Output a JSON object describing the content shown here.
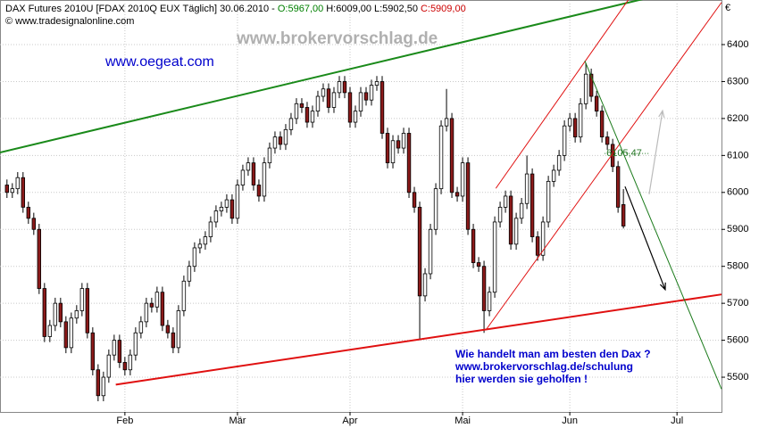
{
  "chart_data": {
    "type": "candlestick",
    "title": "DAX Futures 2010U [FDAX 2010Q EUX  Täglich] 30.06.2010 -",
    "ohlc_labels": [
      "O:5967,00",
      "H:6009,00",
      "L:5902,50",
      "C:5909,00"
    ],
    "ohlc_colors": [
      "#008000",
      "#000000",
      "#000000",
      "#cc0000"
    ],
    "copyright": "© www.tradesignalonline.com",
    "watermark": "www.brokervorschlag.de",
    "site": "www.oegeat.com",
    "annotation": [
      "Wie handelt man am besten den Dax ?",
      "www.brokervorschlag.de/schulung",
      "hier werden sie geholfen !"
    ],
    "currency": "€",
    "up_color": "#ffffff",
    "down_color": "#8b1a1a",
    "xlim": [
      -1.3,
      133.3
    ],
    "xticks": [
      {
        "value": 22,
        "label": "Feb"
      },
      {
        "value": 43,
        "label": "Mär"
      },
      {
        "value": 64,
        "label": "Apr"
      },
      {
        "value": 85,
        "label": "Mai"
      },
      {
        "value": 105,
        "label": "Jun"
      },
      {
        "value": 125,
        "label": "Jul"
      }
    ],
    "ylim": [
      5406,
      6511
    ],
    "yticks": [
      5500,
      5600,
      5700,
      5800,
      5900,
      6000,
      6100,
      6200,
      6300,
      6400
    ],
    "grid": true,
    "open": [
      6020,
      6000,
      6010,
      6040,
      5960,
      5930,
      5900,
      5740,
      5610,
      5640,
      5700,
      5650,
      5580,
      5660,
      5680,
      5740,
      5620,
      5520,
      5450,
      5500,
      5560,
      5600,
      5540,
      5520,
      5560,
      5620,
      5650,
      5700,
      5690,
      5730,
      5640,
      5620,
      5580,
      5680,
      5760,
      5800,
      5850,
      5860,
      5880,
      5920,
      5950,
      5960,
      5980,
      5930,
      6020,
      6060,
      6080,
      6020,
      5990,
      6080,
      6120,
      6150,
      6130,
      6170,
      6200,
      6240,
      6230,
      6190,
      6220,
      6260,
      6280,
      6230,
      6270,
      6300,
      6270,
      6190,
      6220,
      6270,
      6250,
      6290,
      6300,
      6160,
      6080,
      6140,
      6120,
      6160,
      6000,
      5960,
      5720,
      5780,
      5900,
      6010,
      6180,
      6200,
      6000,
      5990,
      6080,
      5900,
      5810,
      5800,
      5680,
      5730,
      5920,
      5960,
      5990,
      5860,
      5930,
      5970,
      6050,
      5880,
      5830,
      5920,
      6030,
      6060,
      6100,
      6180,
      6200,
      6150,
      6240,
      6320,
      6260,
      6220,
      6150,
      6130,
      6070,
      5967
    ],
    "high": [
      6035,
      6025,
      6055,
      6055,
      5975,
      5945,
      5915,
      5755,
      5655,
      5715,
      5715,
      5665,
      5675,
      5695,
      5755,
      5755,
      5635,
      5535,
      5515,
      5575,
      5615,
      5615,
      5555,
      5575,
      5635,
      5665,
      5715,
      5715,
      5745,
      5745,
      5655,
      5635,
      5695,
      5775,
      5815,
      5865,
      5875,
      5895,
      5935,
      5965,
      5975,
      5995,
      5995,
      6035,
      6075,
      6095,
      6095,
      6035,
      6095,
      6135,
      6165,
      6165,
      6185,
      6215,
      6255,
      6255,
      6245,
      6235,
      6275,
      6295,
      6295,
      6285,
      6315,
      6315,
      6285,
      6235,
      6285,
      6285,
      6305,
      6315,
      6315,
      6175,
      6155,
      6155,
      6175,
      6175,
      6015,
      5975,
      5795,
      5915,
      6025,
      6195,
      6280,
      6215,
      6015,
      6095,
      6095,
      5915,
      5825,
      5815,
      5745,
      5935,
      5975,
      6005,
      6005,
      5945,
      5985,
      6100,
      6065,
      5895,
      5935,
      6045,
      6075,
      6115,
      6195,
      6215,
      6215,
      6255,
      6350,
      6335,
      6275,
      6235,
      6165,
      6145,
      6085,
      6009
    ],
    "low": [
      5985,
      5985,
      5995,
      5945,
      5915,
      5885,
      5725,
      5595,
      5595,
      5625,
      5635,
      5565,
      5565,
      5645,
      5665,
      5605,
      5505,
      5435,
      5435,
      5485,
      5545,
      5525,
      5505,
      5505,
      5545,
      5605,
      5635,
      5675,
      5675,
      5625,
      5605,
      5565,
      5565,
      5665,
      5745,
      5785,
      5835,
      5845,
      5865,
      5905,
      5935,
      5945,
      5915,
      5915,
      6005,
      6045,
      6005,
      5975,
      5975,
      6065,
      6105,
      6115,
      6115,
      6155,
      6185,
      6215,
      6175,
      6175,
      6205,
      6245,
      6215,
      6215,
      6255,
      6255,
      6175,
      6175,
      6205,
      6235,
      6235,
      6275,
      6145,
      6065,
      6065,
      6105,
      6105,
      5985,
      5945,
      5600,
      5705,
      5765,
      5885,
      5995,
      6165,
      5985,
      5975,
      5975,
      5885,
      5795,
      5785,
      5620,
      5665,
      5715,
      5905,
      5945,
      5845,
      5845,
      5915,
      5955,
      5865,
      5815,
      5815,
      5905,
      6015,
      6045,
      6085,
      6165,
      6135,
      6135,
      6225,
      6245,
      6205,
      6135,
      6115,
      6055,
      5945,
      5902.5
    ],
    "close": [
      6000,
      6010,
      6040,
      5960,
      5930,
      5900,
      5740,
      5610,
      5640,
      5700,
      5650,
      5580,
      5660,
      5680,
      5740,
      5620,
      5520,
      5450,
      5500,
      5560,
      5600,
      5540,
      5520,
      5560,
      5620,
      5650,
      5700,
      5690,
      5730,
      5640,
      5620,
      5580,
      5680,
      5760,
      5800,
      5850,
      5860,
      5880,
      5920,
      5950,
      5960,
      5980,
      5930,
      6020,
      6060,
      6080,
      6020,
      5990,
      6080,
      6120,
      6150,
      6130,
      6170,
      6200,
      6240,
      6230,
      6190,
      6220,
      6260,
      6280,
      6230,
      6270,
      6300,
      6270,
      6190,
      6220,
      6270,
      6250,
      6290,
      6300,
      6160,
      6080,
      6140,
      6120,
      6160,
      6000,
      5960,
      5720,
      5780,
      5900,
      6010,
      6180,
      6200,
      6000,
      5990,
      6080,
      5900,
      5810,
      5800,
      5680,
      5730,
      5920,
      5960,
      5990,
      5860,
      5930,
      5970,
      6050,
      5880,
      5830,
      5920,
      6030,
      6060,
      6100,
      6180,
      6200,
      6150,
      6240,
      6320,
      6260,
      6220,
      6150,
      6130,
      6070,
      5960,
      5909
    ],
    "lines": [
      {
        "color": "#1a8a1a",
        "width": 2,
        "points": [
          [
            -1.3,
            6108
          ],
          [
            119.5,
            6526
          ]
        ]
      },
      {
        "color": "#e01010",
        "width": 2,
        "points": [
          [
            20.3,
            5480
          ],
          [
            133.3,
            5724
          ]
        ]
      },
      {
        "color": "#e01010",
        "width": 1,
        "points": [
          [
            89.5,
            5631
          ],
          [
            133.3,
            6514
          ]
        ]
      },
      {
        "color": "#e01010",
        "width": 1,
        "points": [
          [
            91.2,
            6011
          ],
          [
            116.2,
            6527
          ]
        ]
      },
      {
        "color": "#1a7a1a",
        "width": 1,
        "points": [
          [
            107.8,
            6356
          ],
          [
            133.3,
            5468
          ]
        ]
      }
    ],
    "arrows": [
      {
        "color": "#000000",
        "points": [
          [
            115.3,
            6016
          ],
          [
            122.8,
            5737
          ]
        ]
      },
      {
        "color": "#bbbbbb",
        "points": [
          [
            119.8,
            5995
          ],
          [
            122.3,
            6221
          ]
        ]
      }
    ],
    "level": {
      "value": 6105.47,
      "label": "6105,47",
      "color": "#2a7a2a",
      "from": 111.5
    }
  }
}
